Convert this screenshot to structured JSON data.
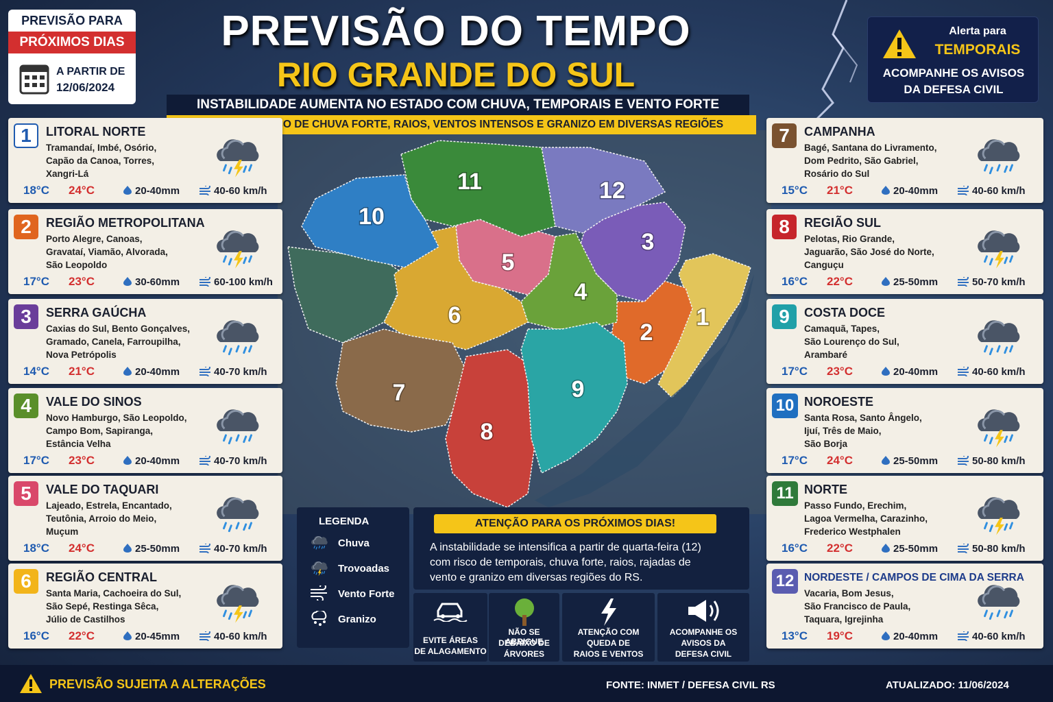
{
  "header": {
    "badge_top": "PREVISÃO PARA",
    "badge_band": "PRÓXIMOS DIAS",
    "date_label": "A PARTIR DE",
    "date": "12/06/2024",
    "title": "PREVISÃO DO TEMPO",
    "subtitle": "RIO GRANDE DO SUL",
    "banner": "INSTABILIDADE AUMENTA NO ESTADO COM CHUVA, TEMPORAIS E VENTO FORTE",
    "attention": "ATENÇÃO: RISCO DE CHUVA FORTE, RAIOS, VENTOS INTENSOS E GRANIZO EM DIVERSAS REGIÕES"
  },
  "alert": {
    "line1": "Alerta para",
    "line2": "TEMPORAIS",
    "lines": [
      "ACOMPANHE OS AVISOS",
      "DA DEFESA CIVIL"
    ]
  },
  "regions": [
    {
      "number": "1",
      "name": "LITORAL NORTE",
      "cities": [
        "Tramandaí, Imbé, Osório,",
        "Capão da Canoa, Torres,",
        "Xangri-Lá"
      ],
      "min": "18°C",
      "max": "24°C",
      "rain": "20-40mm",
      "wind": "40-60 km/h"
    },
    {
      "number": "2",
      "name": "REGIÃO METROPOLITANA",
      "cities": [
        "Porto Alegre, Canoas,",
        "Gravataí, Viamão, Alvorada,",
        "São Leopoldo"
      ],
      "min": "17°C",
      "max": "23°C",
      "rain": "30-60mm",
      "wind": "60-100 km/h"
    },
    {
      "number": "3",
      "name": "SERRA GAÚCHA",
      "cities": [
        "Caxias do Sul, Bento Gonçalves,",
        "Gramado, Canela, Farroupilha,",
        "Nova Petrópolis"
      ],
      "min": "14°C",
      "max": "21°C",
      "rain": "20-40mm",
      "wind": "40-70 km/h"
    },
    {
      "number": "4",
      "name": "VALE DO SINOS",
      "cities": [
        "Novo Hamburgo, São Leopoldo,",
        "Campo Bom, Sapiranga,",
        "Estância Velha"
      ],
      "min": "17°C",
      "max": "23°C",
      "rain": "20-40mm",
      "wind": "40-70 km/h"
    },
    {
      "number": "5",
      "name": "VALE DO TAQUARI",
      "cities": [
        "Lajeado, Estrela, Encantado,",
        "Teutônia, Arroio do Meio,",
        "Muçum"
      ],
      "min": "18°C",
      "max": "24°C",
      "rain": "25-50mm",
      "wind": "40-70 km/h"
    },
    {
      "number": "6",
      "name": "REGIÃO CENTRAL",
      "cities": [
        "Santa Maria, Cachoeira do Sul,",
        "São Sepé, Restinga Sêca,",
        "Júlio de Castilhos"
      ],
      "min": "16°C",
      "max": "22°C",
      "rain": "20-45mm",
      "wind": "40-60 km/h"
    },
    {
      "number": "7",
      "name": "CAMPANHA",
      "cities": [
        "Bagé, Santana do Livramento,",
        "Dom Pedrito, São Gabriel,",
        "Rosário do Sul"
      ],
      "min": "15°C",
      "max": "21°C",
      "rain": "20-40mm",
      "wind": "40-60 km/h"
    },
    {
      "number": "8",
      "name": "REGIÃO SUL",
      "cities": [
        "Pelotas, Rio Grande,",
        "Jaguarão, São José do Norte,",
        "Canguçu"
      ],
      "min": "16°C",
      "max": "22°C",
      "rain": "25-50mm",
      "wind": "50-70 km/h"
    },
    {
      "number": "9",
      "name": "COSTA DOCE",
      "cities": [
        "Camaquã, Tapes,",
        "São Lourenço do Sul,",
        "Arambaré"
      ],
      "min": "17°C",
      "max": "23°C",
      "rain": "20-40mm",
      "wind": "40-60 km/h"
    },
    {
      "number": "10",
      "name": "NOROESTE",
      "cities": [
        "Santa Rosa, Santo Ângelo,",
        "Ijuí, Três de Maio,",
        "São Borja"
      ],
      "min": "17°C",
      "max": "24°C",
      "rain": "25-50mm",
      "wind": "50-80 km/h"
    },
    {
      "number": "11",
      "name": "NORTE",
      "cities": [
        "Passo Fundo, Erechim,",
        "Lagoa Vermelha, Carazinho,",
        "Frederico Westphalen"
      ],
      "min": "16°C",
      "max": "22°C",
      "rain": "25-50mm",
      "wind": "50-80 km/h"
    },
    {
      "number": "12",
      "name": "NORDESTE / CAMPOS DE CIMA DA SERRA",
      "cities": [
        "Vacaria, Bom Jesus,",
        "São Francisco de Paula,",
        "Taquara, Igrejinha"
      ],
      "min": "13°C",
      "max": "19°C",
      "rain": "20-40mm",
      "wind": "40-60 km/h"
    }
  ],
  "legend": {
    "title": "LEGENDA",
    "items": [
      "Chuva",
      "Trovoadas",
      "Vento Forte",
      "Granizo"
    ]
  },
  "notice": {
    "title": "ATENÇÃO PARA OS PRÓXIMOS DIAS!",
    "lines": [
      "A instabilidade se intensifica a partir de quarta-feira (12)",
      "com risco de temporais, chuva forte, raios, rajadas de",
      "vento e granizo em diversas regiões do RS."
    ]
  },
  "tips": [
    [
      "EVITE ÁREAS",
      "DE ALAGAMENTO"
    ],
    [
      "NÃO SE ABRIGUE",
      "DEBAIXO DE",
      "ÁRVORES"
    ],
    [
      "ATENÇÃO COM",
      "QUEDA DE",
      "RAIOS E VENTOS"
    ],
    [
      "ACOMPANHE OS",
      "AVISOS DA",
      "DEFESA CIVIL"
    ]
  ],
  "footer": {
    "warning": "PREVISÃO SUJEITA A ALTERAÇÕES",
    "source": "FONTE: INMET / DEFESA CIVIL RS",
    "updated": "ATUALIZADO: 11/06/2024"
  }
}
